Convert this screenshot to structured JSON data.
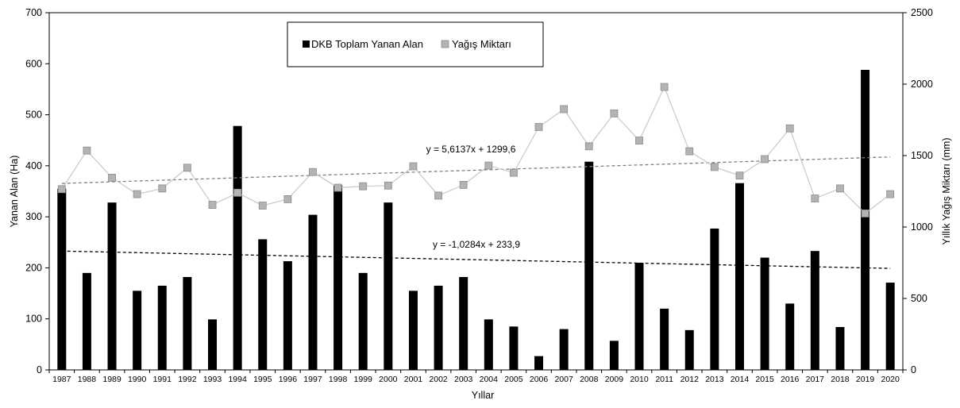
{
  "chart_data": {
    "type": "bar",
    "xlabel": "Yıllar",
    "ylabel": "Yanan Alan (Ha)",
    "y2label": "Yıllık Yağış Miktarı (mm)",
    "ylim": [
      0,
      700
    ],
    "y2lim": [
      0,
      2500
    ],
    "yticks": [
      "0",
      "100",
      "200",
      "300",
      "400",
      "500",
      "600",
      "700"
    ],
    "y2ticks": [
      "0",
      "500",
      "1000",
      "1500",
      "2000",
      "2500"
    ],
    "grid": false,
    "legend_position": "top-center",
    "categories": [
      "1987",
      "1988",
      "1989",
      "1990",
      "1991",
      "1992",
      "1993",
      "1994",
      "1995",
      "1996",
      "1997",
      "1998",
      "1999",
      "2000",
      "2001",
      "2002",
      "2003",
      "2004",
      "2005",
      "2006",
      "2007",
      "2008",
      "2009",
      "2010",
      "2011",
      "2012",
      "2013",
      "2014",
      "2015",
      "2016",
      "2017",
      "2018",
      "2019",
      "2020"
    ],
    "series": [
      {
        "name": "DKB Toplam Yanan Alan",
        "kind": "bar",
        "axis": "left",
        "color": "#000000",
        "values": [
          355,
          190,
          328,
          155,
          165,
          182,
          99,
          478,
          256,
          213,
          304,
          362,
          190,
          328,
          155,
          165,
          182,
          99,
          85,
          27,
          80,
          408,
          57,
          210,
          120,
          78,
          277,
          366,
          220,
          130,
          233,
          84,
          588,
          171
        ]
      },
      {
        "name": "Yağış Miktarı",
        "kind": "line",
        "axis": "right",
        "color": "#c8c8c8",
        "marker_color": "#b3b3b3",
        "values": [
          1265,
          1535,
          1345,
          1230,
          1270,
          1415,
          1155,
          1240,
          1150,
          1195,
          1385,
          1275,
          1285,
          1290,
          1425,
          1220,
          1295,
          1430,
          1380,
          1700,
          1825,
          1565,
          1795,
          1605,
          1980,
          1530,
          1420,
          1360,
          1475,
          1690,
          1200,
          1270,
          1095,
          1230
        ]
      }
    ],
    "trendlines": [
      {
        "series": "DKB Toplam Yanan Alan",
        "axis": "left",
        "label": "y = -1,0284x + 233,9",
        "slope": -1.0284,
        "intercept": 233.9,
        "color": "#000000"
      },
      {
        "series": "Yağış Miktarı",
        "axis": "right",
        "label": "y = 5,6137x + 1299,6",
        "slope": 5.6137,
        "intercept": 1299.6,
        "color": "#808080"
      }
    ]
  }
}
